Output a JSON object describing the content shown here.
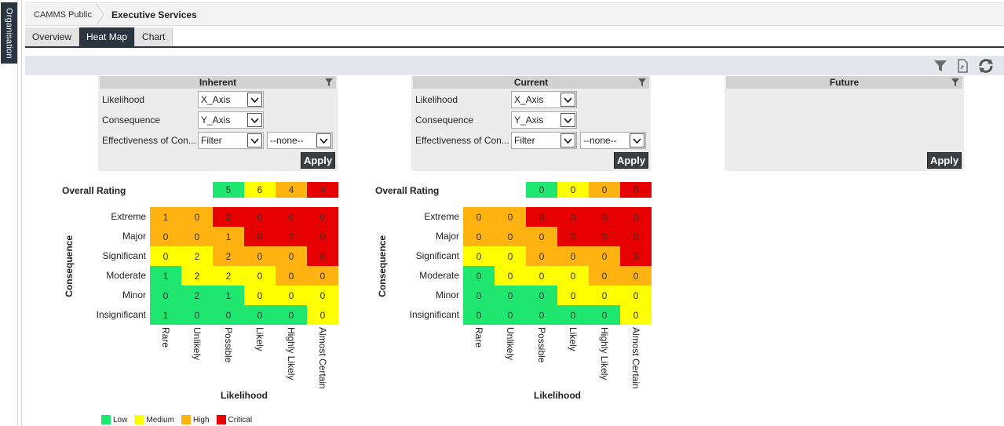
{
  "sidebar": {
    "org_tab": "Organisation"
  },
  "breadcrumb": {
    "root": "CAMMS Public",
    "current": "Executive Services"
  },
  "tabs": [
    {
      "label": "Overview",
      "active": false
    },
    {
      "label": "Heat Map",
      "active": true
    },
    {
      "label": "Chart",
      "active": false
    }
  ],
  "toolbar": {
    "icons": [
      "filter-icon",
      "export-icon",
      "refresh-icon"
    ]
  },
  "panels": {
    "inherent": {
      "title": "Inherent",
      "likelihood_label": "Likelihood",
      "likelihood_value": "X_Axis",
      "consequence_label": "Consequence",
      "consequence_value": "Y_Axis",
      "effectiveness_label": "Effectiveness of Con...",
      "effectiveness_value": "Filter",
      "effectiveness_extra": "--none--",
      "apply": "Apply"
    },
    "current": {
      "title": "Current",
      "likelihood_label": "Likelihood",
      "likelihood_value": "X_Axis",
      "consequence_label": "Consequence",
      "consequence_value": "Y_Axis",
      "effectiveness_label": "Effectiveness of Con...",
      "effectiveness_value": "Filter",
      "effectiveness_extra": "--none--",
      "apply": "Apply"
    },
    "future": {
      "title": "Future",
      "apply": "Apply"
    }
  },
  "heatmaps": {
    "inherent": {
      "overall_label": "Overall Rating",
      "overall": [
        "5",
        "6",
        "4",
        "4"
      ],
      "cells": [
        [
          "1",
          "0",
          "2",
          "0",
          "0",
          "0"
        ],
        [
          "0",
          "0",
          "1",
          "0",
          "2",
          "0"
        ],
        [
          "0",
          "2",
          "2",
          "0",
          "0",
          "0"
        ],
        [
          "1",
          "2",
          "2",
          "0",
          "0",
          "0"
        ],
        [
          "0",
          "2",
          "1",
          "0",
          "0",
          "0"
        ],
        [
          "1",
          "0",
          "0",
          "0",
          "0",
          "0"
        ]
      ]
    },
    "current": {
      "overall_label": "Overall Rating",
      "overall": [
        "0",
        "0",
        "0",
        "0"
      ],
      "cells": [
        [
          "0",
          "0",
          "0",
          "0",
          "0",
          "0"
        ],
        [
          "0",
          "0",
          "0",
          "0",
          "0",
          "0"
        ],
        [
          "0",
          "0",
          "0",
          "0",
          "0",
          "0"
        ],
        [
          "0",
          "0",
          "0",
          "0",
          "0",
          "0"
        ],
        [
          "0",
          "0",
          "0",
          "0",
          "0",
          "0"
        ],
        [
          "0",
          "0",
          "0",
          "0",
          "0",
          "0"
        ]
      ]
    },
    "y_axis_title": "Consequence",
    "x_axis_title": "Likelihood",
    "rows": [
      "Extreme",
      "Major",
      "Significant",
      "Moderate",
      "Minor",
      "Insignificant"
    ],
    "cols": [
      "Rare",
      "Unlikely",
      "Possible",
      "Likely",
      "Highly Likely",
      "Almost Certain"
    ],
    "color_grid": [
      [
        "H",
        "H",
        "C",
        "C",
        "C",
        "C"
      ],
      [
        "H",
        "H",
        "H",
        "C",
        "C",
        "C"
      ],
      [
        "M",
        "M",
        "H",
        "H",
        "H",
        "C"
      ],
      [
        "L",
        "M",
        "M",
        "M",
        "H",
        "H"
      ],
      [
        "L",
        "L",
        "L",
        "M",
        "M",
        "M"
      ],
      [
        "L",
        "L",
        "L",
        "L",
        "L",
        "M"
      ]
    ]
  },
  "legend": [
    {
      "label": "Low",
      "color": "#1ee66e"
    },
    {
      "label": "Medium",
      "color": "#ffff00"
    },
    {
      "label": "High",
      "color": "#ffb310"
    },
    {
      "label": "Critical",
      "color": "#e60000"
    }
  ],
  "colors": {
    "L": "#1ee66e",
    "M": "#ffff00",
    "H": "#ffb310",
    "C": "#e60000",
    "dark": "#2b3540"
  }
}
